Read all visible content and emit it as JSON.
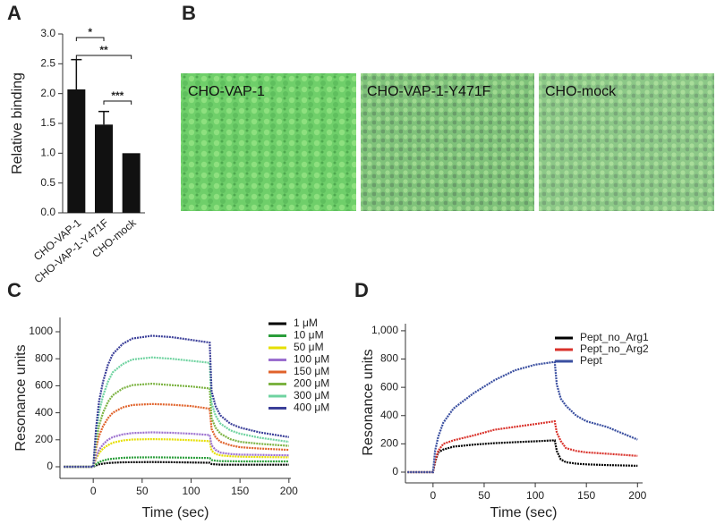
{
  "panels": [
    "A",
    "B",
    "C",
    "D"
  ],
  "images": {
    "labels": [
      "CHO-VAP-1",
      "CHO-VAP-1-Y471F",
      "CHO-mock"
    ]
  },
  "chart_data": [
    {
      "type": "bar",
      "y_label": "Relative binding",
      "categories": [
        "CHO-VAP-1",
        "CHO-VAP-1-Y471F",
        "CHO-mock"
      ],
      "values": [
        2.07,
        1.48,
        1.0
      ],
      "errors": [
        0.5,
        0.22,
        0
      ],
      "color": "#111111",
      "annotations": [
        "*",
        "**",
        "***"
      ],
      "ylim": [
        0,
        3.0
      ],
      "yticks": [
        {
          "value": 0,
          "label": "0.0"
        },
        {
          "value": 0.5,
          "label": "0.5"
        },
        {
          "value": 1.0,
          "label": "1.0"
        },
        {
          "value": 1.5,
          "label": "1.5"
        },
        {
          "value": 2.0,
          "label": "2.0"
        },
        {
          "value": 2.5,
          "label": "2.5"
        },
        {
          "value": 3.0,
          "label": "3.0"
        }
      ]
    },
    {
      "type": "line",
      "x_label": "Time (sec)",
      "y_label": "Resonance units",
      "x": [
        -30,
        -10,
        0,
        3,
        6,
        10,
        15,
        20,
        30,
        40,
        60,
        80,
        100,
        119,
        121,
        125,
        130,
        140,
        150,
        170,
        200
      ],
      "series": [
        {
          "name": "1 μM",
          "color": "#000000",
          "values": [
            0,
            0,
            0,
            10,
            18,
            23,
            28,
            30,
            33,
            34,
            35,
            34,
            32,
            30,
            20,
            18,
            16,
            15,
            15,
            15,
            15
          ]
        },
        {
          "name": "10 μM",
          "color": "#2a9d3a",
          "values": [
            0,
            0,
            0,
            20,
            35,
            45,
            55,
            60,
            66,
            69,
            70,
            69,
            67,
            65,
            50,
            45,
            42,
            41,
            40,
            40,
            40
          ]
        },
        {
          "name": "50 μM",
          "color": "#e6df00",
          "values": [
            0,
            0,
            0,
            60,
            100,
            135,
            160,
            178,
            195,
            202,
            205,
            203,
            197,
            190,
            120,
            95,
            85,
            78,
            75,
            72,
            70
          ]
        },
        {
          "name": "100 μM",
          "color": "#9b6fcf",
          "values": [
            0,
            0,
            0,
            75,
            125,
            165,
            200,
            220,
            240,
            250,
            255,
            252,
            245,
            235,
            160,
            125,
            105,
            95,
            90,
            88,
            85
          ]
        },
        {
          "name": "150 μM",
          "color": "#e0622a",
          "values": [
            0,
            0,
            0,
            140,
            230,
            300,
            360,
            400,
            440,
            458,
            465,
            460,
            450,
            430,
            280,
            220,
            185,
            160,
            145,
            135,
            125
          ]
        },
        {
          "name": "200 μM",
          "color": "#7cb342",
          "values": [
            0,
            0,
            0,
            185,
            305,
            400,
            480,
            530,
            580,
            605,
            615,
            605,
            595,
            580,
            360,
            290,
            245,
            205,
            185,
            170,
            155
          ]
        },
        {
          "name": "300 μM",
          "color": "#6fd3a0",
          "values": [
            0,
            0,
            0,
            245,
            405,
            525,
            630,
            700,
            760,
            795,
            810,
            800,
            785,
            770,
            470,
            380,
            320,
            270,
            245,
            215,
            185
          ]
        },
        {
          "name": "400 μM",
          "color": "#3b3f99",
          "values": [
            0,
            0,
            0,
            290,
            485,
            630,
            755,
            835,
            910,
            950,
            970,
            960,
            940,
            920,
            560,
            450,
            380,
            320,
            290,
            255,
            220
          ]
        }
      ],
      "xlim": [
        -34,
        202
      ],
      "xticks": [
        0,
        50,
        100,
        150,
        200
      ],
      "ylim": [
        -86,
        1106
      ],
      "yticks": [
        0,
        200,
        400,
        600,
        800,
        1000
      ]
    },
    {
      "type": "line",
      "x_label": "Time (sec)",
      "y_label": "Resonance units",
      "x": [
        -25,
        -5,
        0,
        2,
        5,
        10,
        20,
        40,
        60,
        80,
        100,
        119,
        121,
        125,
        130,
        140,
        150,
        170,
        200
      ],
      "series": [
        {
          "name": "Pept_no_Arg1",
          "color": "#000000",
          "values": [
            0,
            0,
            0,
            70,
            140,
            160,
            180,
            195,
            205,
            212,
            218,
            225,
            150,
            90,
            70,
            60,
            55,
            50,
            45
          ]
        },
        {
          "name": "Pept_no_Arg2",
          "color": "#d9322b",
          "values": [
            0,
            0,
            0,
            80,
            150,
            200,
            225,
            260,
            300,
            320,
            340,
            360,
            280,
            220,
            170,
            150,
            140,
            130,
            115
          ]
        },
        {
          "name": "Pept",
          "color": "#3a4fa0",
          "values": [
            0,
            0,
            0,
            150,
            250,
            350,
            450,
            560,
            650,
            720,
            760,
            780,
            620,
            520,
            470,
            400,
            360,
            320,
            230
          ]
        }
      ],
      "xlim": [
        -27,
        205
      ],
      "xticks": [
        0,
        50,
        100,
        150,
        200
      ],
      "ylim": [
        -76,
        1050
      ],
      "yticks": [
        0,
        200,
        400,
        600,
        800,
        {
          "value": 1000,
          "label": "1,000"
        }
      ]
    }
  ]
}
